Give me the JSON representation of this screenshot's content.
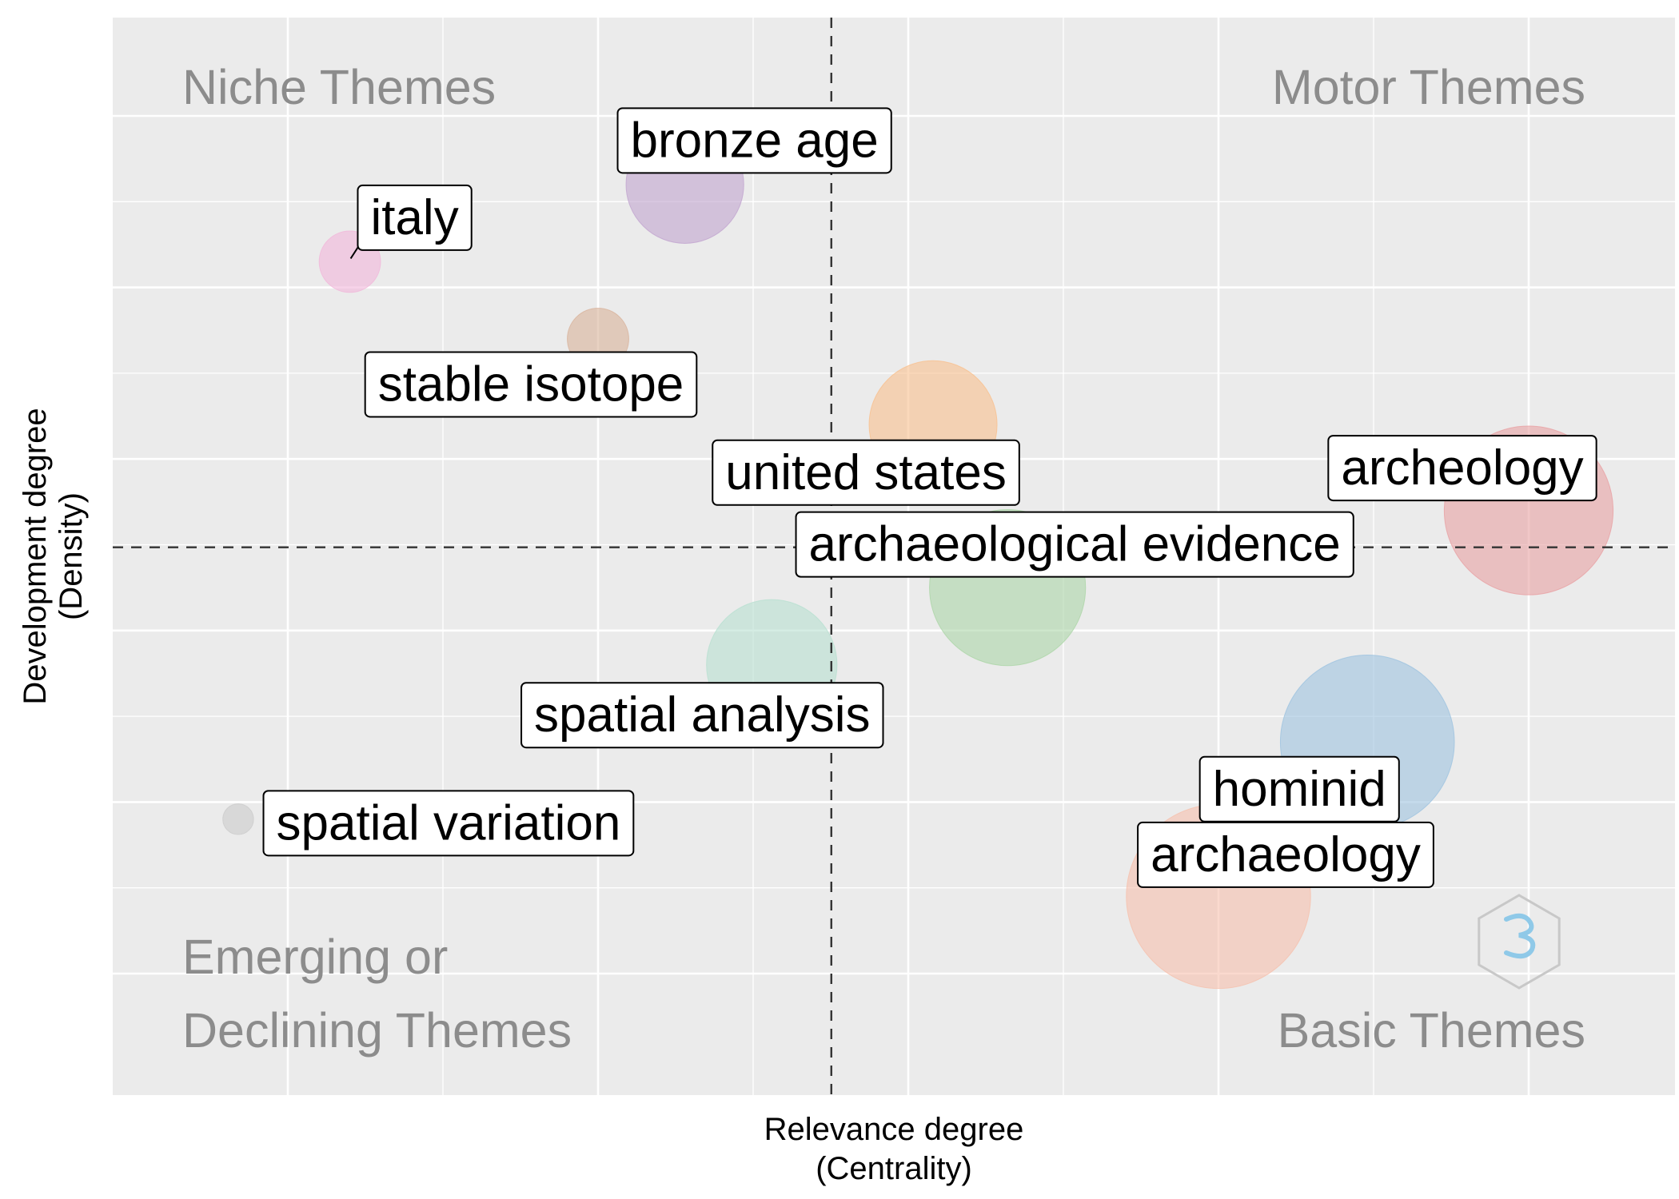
{
  "chart_data": {
    "type": "scatter",
    "title": "",
    "xlabel": [
      "Relevance degree",
      "(Centrality)"
    ],
    "ylabel": [
      "Development degree",
      "(Density)"
    ],
    "xlim": [
      0,
      1
    ],
    "ylim": [
      0,
      1
    ],
    "grid": true,
    "x_reference": 0.438,
    "y_reference": 0.497,
    "quadrant_labels": {
      "top_left": [
        "Niche Themes"
      ],
      "top_right": [
        "Motor Themes"
      ],
      "bottom_left": [
        "Emerging or",
        "Declining Themes"
      ],
      "bottom_right": [
        "Basic Themes"
      ]
    },
    "points": [
      {
        "label": "bronze age",
        "x": 0.32,
        "y": 0.92,
        "size": 0.46,
        "color": "#c2a5cf"
      },
      {
        "label": "italy",
        "x": 0.05,
        "y": 0.83,
        "size": 0.24,
        "color": "#f1b6da"
      },
      {
        "label": "stable isotope",
        "x": 0.25,
        "y": 0.74,
        "size": 0.24,
        "color": "#d8b29a"
      },
      {
        "label": "united states",
        "x": 0.52,
        "y": 0.64,
        "size": 0.5,
        "color": "#f9c08e"
      },
      {
        "label": "archeology",
        "x": 1.0,
        "y": 0.54,
        "size": 0.66,
        "color": "#e8a1a4"
      },
      {
        "label": "archaeological evidence",
        "x": 0.58,
        "y": 0.45,
        "size": 0.61,
        "color": "#acd6a8"
      },
      {
        "label": "spatial analysis",
        "x": 0.39,
        "y": 0.36,
        "size": 0.51,
        "color": "#b8e0d1"
      },
      {
        "label": "hominid",
        "x": 0.87,
        "y": 0.27,
        "size": 0.68,
        "color": "#9ec3e0"
      },
      {
        "label": "spatial variation",
        "x": -0.04,
        "y": 0.18,
        "size": 0.12,
        "color": "#cccccc"
      },
      {
        "label": "archaeology",
        "x": 0.75,
        "y": 0.09,
        "size": 0.72,
        "color": "#f6c0ad"
      }
    ]
  }
}
